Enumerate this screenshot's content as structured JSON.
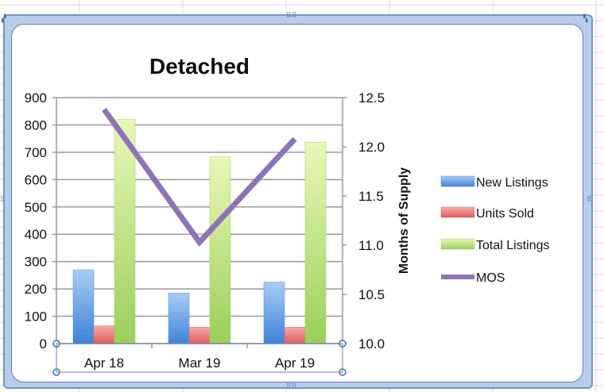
{
  "colors": {
    "new_listings": "#6fa8e8",
    "units_sold": "#ee7f7f",
    "total_listings": "#c4e58a",
    "mos": "#8e73b5",
    "grid": "#9a9a9a",
    "frame": "#6e95d0"
  },
  "chart_data": {
    "type": "bar",
    "title": "Detached",
    "categories": [
      "Apr 18",
      "Mar 19",
      "Apr 19"
    ],
    "series": [
      {
        "name": "New Listings",
        "type": "bar",
        "axis": "left",
        "values": [
          270,
          185,
          225
        ]
      },
      {
        "name": "Units Sold",
        "type": "bar",
        "axis": "left",
        "values": [
          65,
          60,
          60
        ]
      },
      {
        "name": "Total Listings",
        "type": "bar",
        "axis": "left",
        "values": [
          820,
          683,
          737
        ]
      },
      {
        "name": "MOS",
        "type": "line",
        "axis": "right",
        "values": [
          12.38,
          11.03,
          12.08
        ]
      }
    ],
    "ylim": [
      0,
      900
    ],
    "yticks": [
      "0",
      "100",
      "200",
      "300",
      "400",
      "500",
      "600",
      "700",
      "800",
      "900"
    ],
    "y2label": "Months of Supply",
    "y2lim": [
      10.0,
      12.5
    ],
    "y2ticks": [
      "10.0",
      "10.5",
      "11.0",
      "11.5",
      "12.0",
      "12.5"
    ],
    "grid": true,
    "legend_position": "right"
  }
}
